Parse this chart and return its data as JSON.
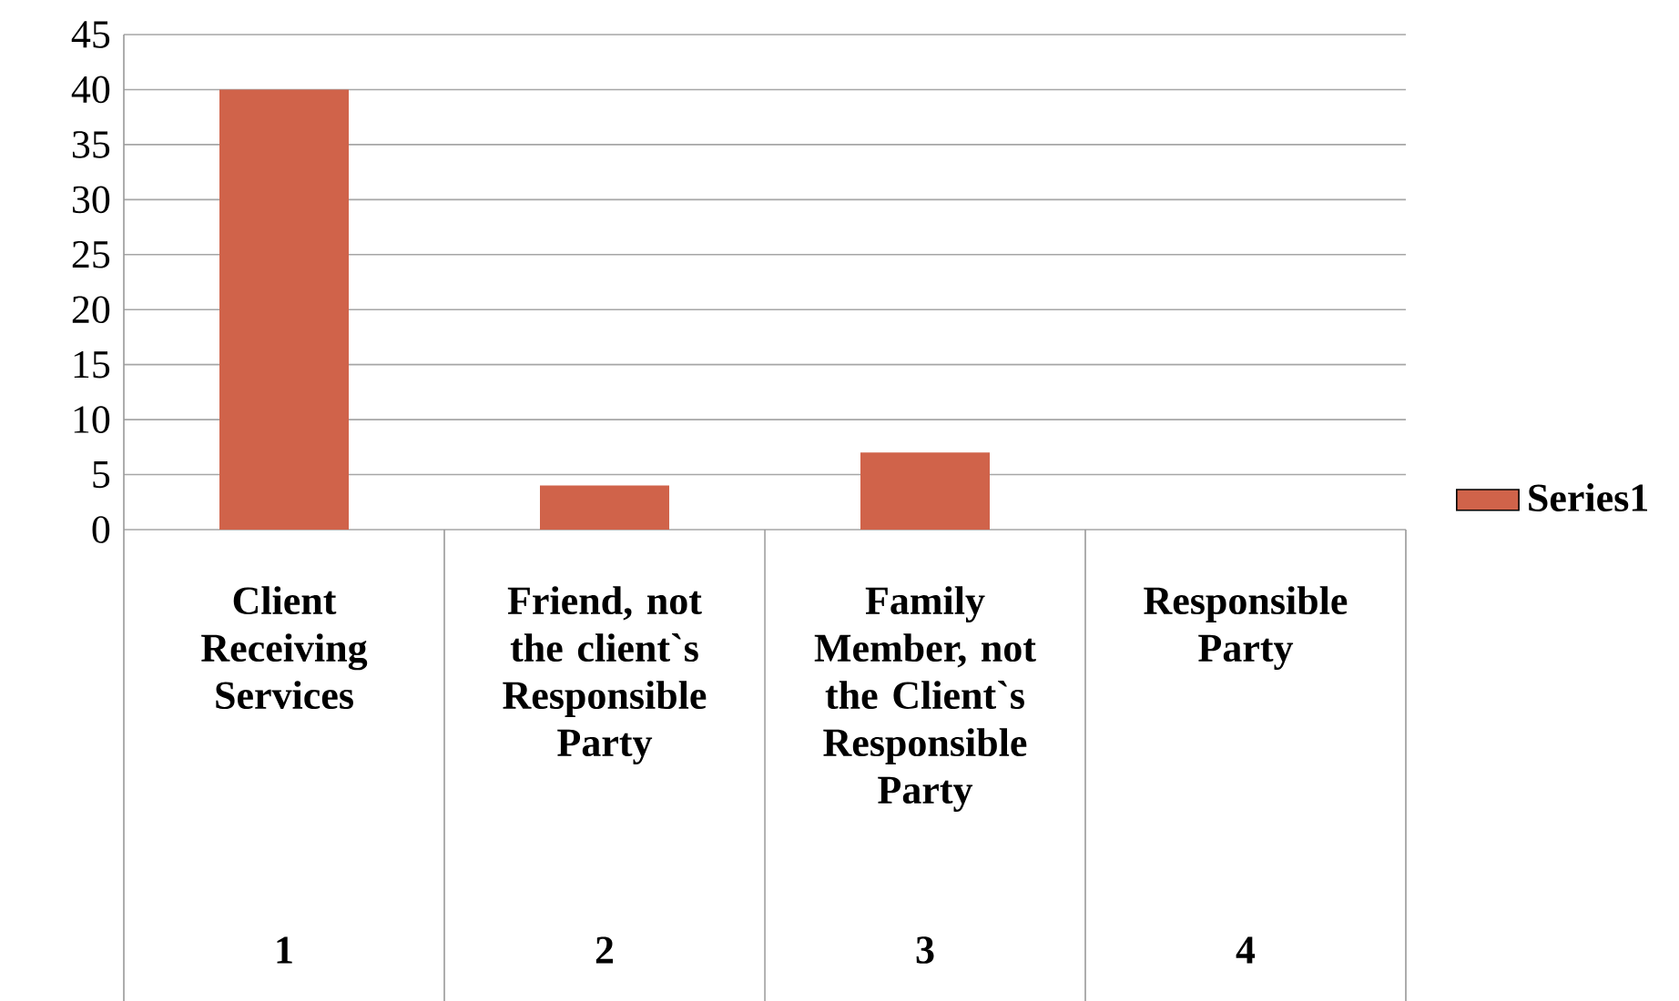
{
  "chart_data": {
    "type": "bar",
    "categories": [
      "Client Receiving Services",
      "Friend, not the client`s Responsible Party",
      "Family Member, not the Client`s Responsible Party",
      "Responsible Party"
    ],
    "series": [
      {
        "name": "Series1",
        "color": "#d0634a",
        "values": [
          40,
          4,
          7,
          0
        ]
      }
    ],
    "ylim": [
      0,
      45
    ],
    "yticks": [
      0,
      5,
      10,
      15,
      20,
      25,
      30,
      35,
      40,
      45
    ],
    "grid": "y",
    "legend": "right",
    "annotations": [
      "1",
      "2",
      "3",
      "4"
    ]
  }
}
